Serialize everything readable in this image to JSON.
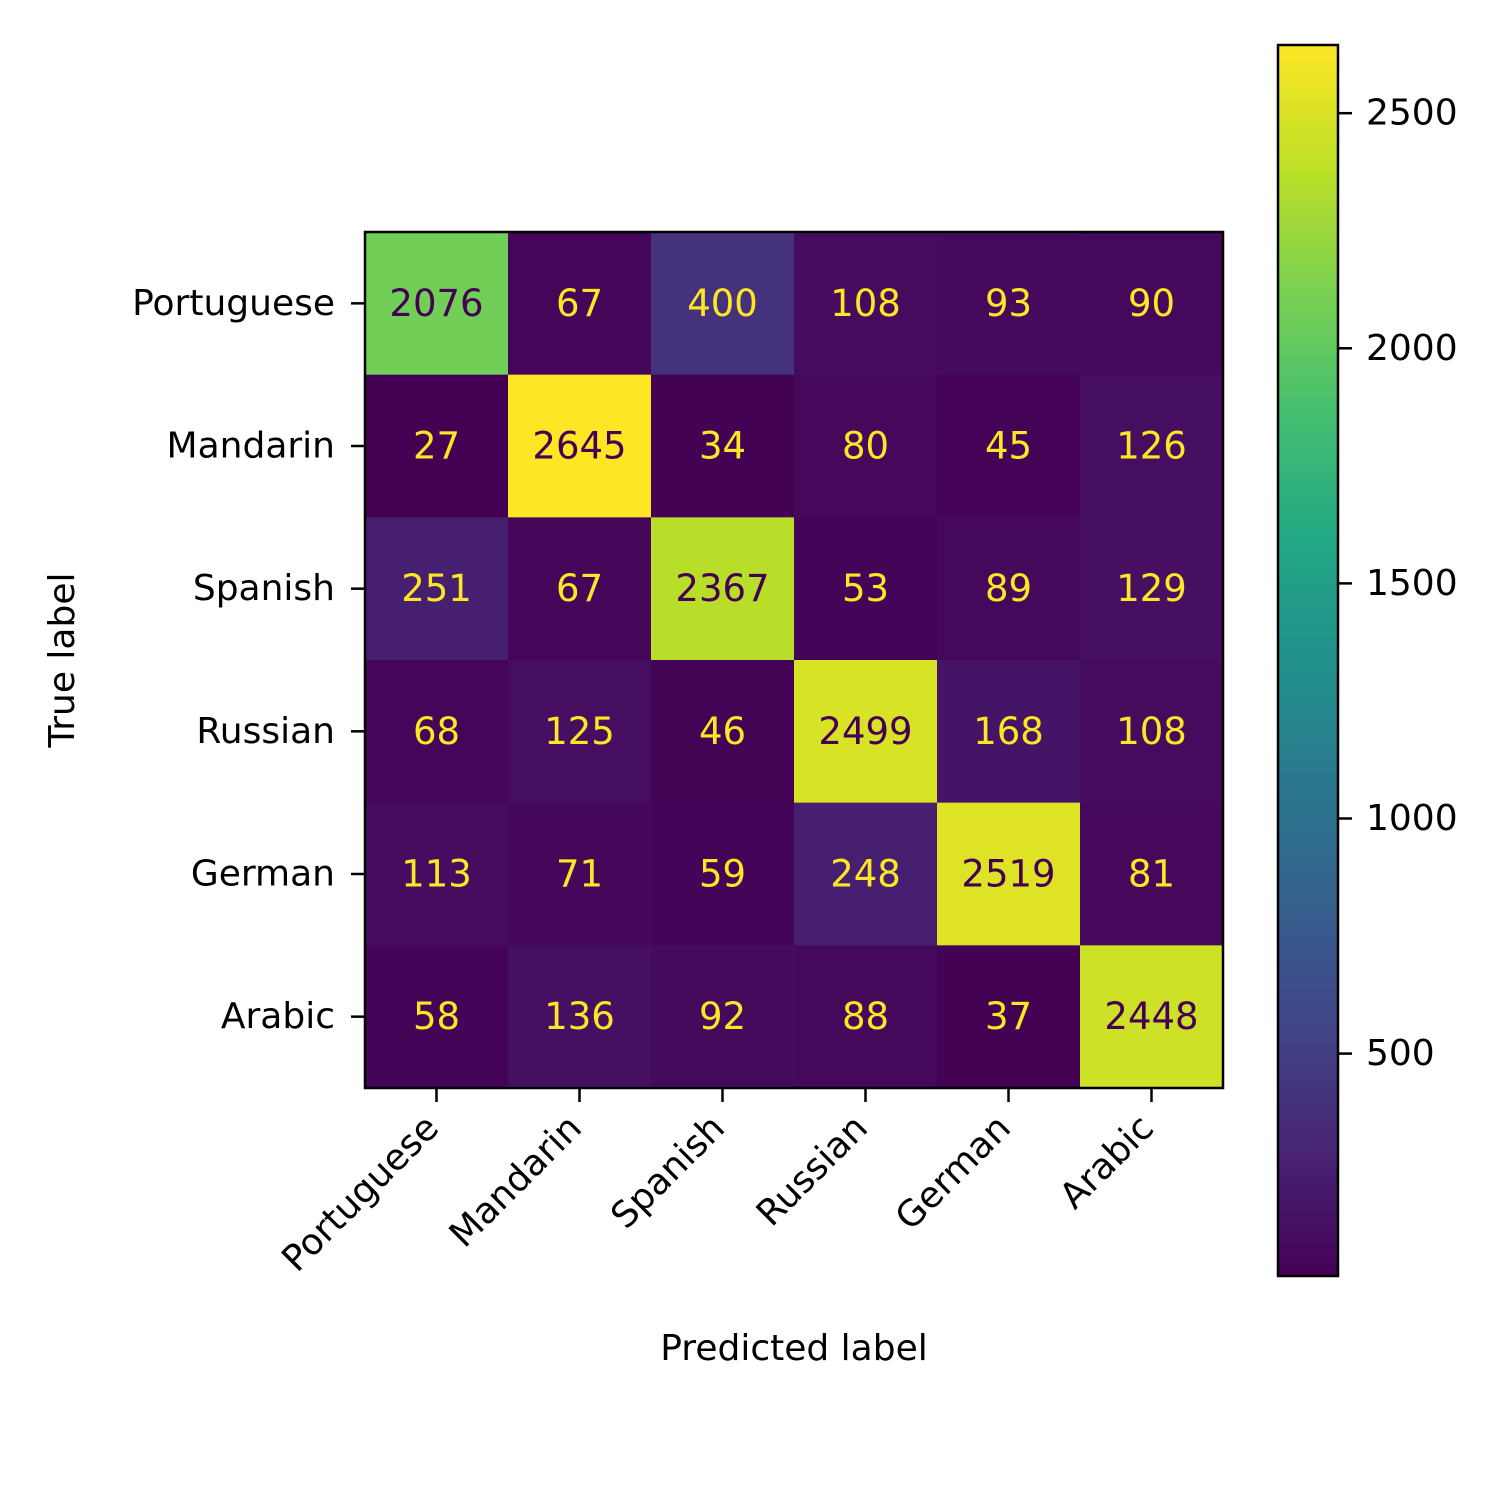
{
  "chart_data": {
    "type": "heatmap",
    "title": "",
    "xlabel": "Predicted label",
    "ylabel": "True label",
    "x_categories": [
      "Portuguese",
      "Mandarin",
      "Spanish",
      "Russian",
      "German",
      "Arabic"
    ],
    "y_categories": [
      "Portuguese",
      "Mandarin",
      "Spanish",
      "Russian",
      "German",
      "Arabic"
    ],
    "values": [
      [
        2076,
        67,
        400,
        108,
        93,
        90
      ],
      [
        27,
        2645,
        34,
        80,
        45,
        126
      ],
      [
        251,
        67,
        2367,
        53,
        89,
        129
      ],
      [
        68,
        125,
        46,
        2499,
        168,
        108
      ],
      [
        113,
        71,
        59,
        248,
        2519,
        81
      ],
      [
        58,
        136,
        92,
        88,
        37,
        2448
      ]
    ],
    "colormap": "viridis",
    "color_range": [
      27,
      2645
    ],
    "colorbar": {
      "ticks": [
        500,
        1000,
        1500,
        2000,
        2500
      ],
      "tick_labels": [
        "500",
        "1000",
        "1500",
        "2000",
        "2500"
      ]
    },
    "text_colors": {
      "on_dark": "#fde725",
      "on_light": "#440154"
    },
    "grid": false
  }
}
